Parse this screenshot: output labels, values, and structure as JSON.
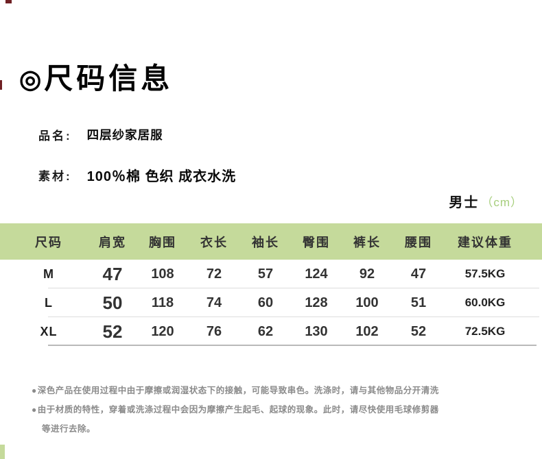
{
  "header": {
    "bullet": "◎",
    "title": "尺码信息"
  },
  "product": {
    "name_label": "品名:",
    "name_value": "四层纱家居服",
    "material_label": "素材:",
    "material_value": "100％棉 色织 成衣水洗"
  },
  "unit_tag": {
    "gender": "男士",
    "unit": "（cm）"
  },
  "size_table": {
    "headers": [
      "尺码",
      "肩宽",
      "胸围",
      "衣长",
      "袖长",
      "臀围",
      "裤长",
      "腰围",
      "建议体重"
    ],
    "rows": [
      {
        "size": "M",
        "shoulder": "47",
        "chest": "108",
        "garment_length": "72",
        "sleeve": "57",
        "hip": "124",
        "pants": "92",
        "waist": "47",
        "weight": "57.5KG"
      },
      {
        "size": "L",
        "shoulder": "50",
        "chest": "118",
        "garment_length": "74",
        "sleeve": "60",
        "hip": "128",
        "pants": "100",
        "waist": "51",
        "weight": "60.0KG"
      },
      {
        "size": "XL",
        "shoulder": "52",
        "chest": "120",
        "garment_length": "76",
        "sleeve": "62",
        "hip": "130",
        "pants": "102",
        "waist": "52",
        "weight": "72.5KG"
      }
    ]
  },
  "notes": {
    "bullet": "●",
    "line1": "深色产品在使用过程中由于摩擦或润湿状态下的接触，可能导致串色。洗涤时，请与其他物品分开清洗",
    "line2": "由于材质的特性，穿着或洗涤过程中会因为摩擦产生起毛、起球的现象。此时，请尽快使用毛球修剪器",
    "line3": "等进行去除。"
  },
  "colors": {
    "table_header_green": "#c5da9b",
    "unit_text_green": "#a6ce7c",
    "note_gray": "#8b8b8b"
  }
}
